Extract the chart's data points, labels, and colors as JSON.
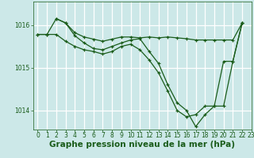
{
  "background_color": "#cce8e8",
  "plot_bg_color": "#cce8e8",
  "grid_color": "#ffffff",
  "line_color": "#1a5c1a",
  "xlabel": "Graphe pression niveau de la mer (hPa)",
  "xlabel_fontsize": 7.5,
  "xlabel_color": "#1a5c1a",
  "xlabel_weight": "bold",
  "xlabel_bg": "#cce8e8",
  "ylim": [
    1013.55,
    1016.55
  ],
  "xlim": [
    -0.5,
    23.0
  ],
  "yticks": [
    1014,
    1015,
    1016
  ],
  "xticks": [
    0,
    1,
    2,
    3,
    4,
    5,
    6,
    7,
    8,
    9,
    10,
    11,
    12,
    13,
    14,
    15,
    16,
    17,
    18,
    19,
    20,
    21,
    22,
    23
  ],
  "tick_fontsize": 5.5,
  "tick_color": "#1a5c1a",
  "series1": {
    "x": [
      0,
      1,
      2,
      3,
      4,
      5,
      6,
      7,
      8,
      9,
      10,
      11,
      12,
      13,
      14,
      15,
      16,
      17,
      18,
      19,
      20,
      21,
      22
    ],
    "y": [
      1015.78,
      1015.78,
      1016.15,
      1016.05,
      1015.82,
      1015.72,
      1015.67,
      1015.62,
      1015.67,
      1015.72,
      1015.72,
      1015.7,
      1015.72,
      1015.7,
      1015.72,
      1015.7,
      1015.68,
      1015.65,
      1015.65,
      1015.65,
      1015.65,
      1015.65,
      1016.05
    ]
  },
  "series2": {
    "x": [
      2,
      3,
      4,
      5,
      6,
      7,
      8,
      9,
      10,
      11,
      12,
      13,
      14,
      15,
      16,
      17,
      18,
      19,
      20,
      21,
      22
    ],
    "y": [
      1016.15,
      1016.05,
      1015.75,
      1015.58,
      1015.45,
      1015.42,
      1015.5,
      1015.58,
      1015.65,
      1015.68,
      1015.38,
      1015.1,
      1014.6,
      1014.18,
      1014.0,
      1013.62,
      1013.9,
      1014.1,
      1014.1,
      1015.15,
      1016.05
    ]
  },
  "series3": {
    "x": [
      0,
      1,
      2,
      3,
      4,
      5,
      6,
      7,
      8,
      9,
      10,
      11,
      12,
      13,
      14,
      15,
      16,
      17,
      18,
      19,
      20,
      21,
      22
    ],
    "y": [
      1015.78,
      1015.78,
      1015.78,
      1015.62,
      1015.5,
      1015.42,
      1015.38,
      1015.32,
      1015.38,
      1015.5,
      1015.55,
      1015.42,
      1015.18,
      1014.88,
      1014.45,
      1014.0,
      1013.85,
      1013.9,
      1014.1,
      1014.1,
      1015.15,
      1015.15,
      1016.05
    ]
  }
}
